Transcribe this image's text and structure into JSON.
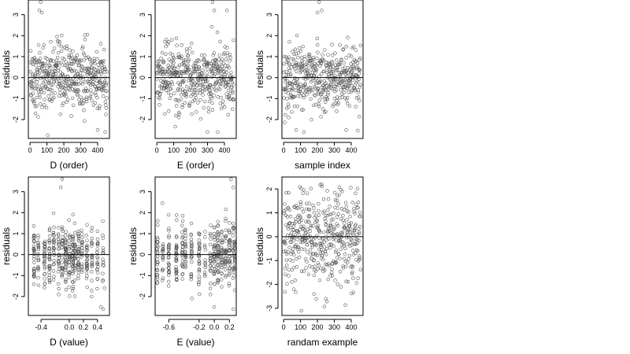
{
  "figure": {
    "colors": {
      "point": "#555555",
      "axis": "#000000",
      "background": "#ffffff"
    },
    "point_marker": "open-circle",
    "point_count_per_panel": 450
  },
  "chart_data": [
    {
      "type": "scatter",
      "panel": "D-order",
      "title": "",
      "xlabel": "D (order)",
      "ylabel": "residuals",
      "xlim": [
        -10,
        470
      ],
      "ylim": [
        -2.9,
        3.7
      ],
      "xticks": [
        0,
        100,
        200,
        300,
        400
      ],
      "xtick_labels": [
        "0",
        "100",
        "200",
        "300",
        "400"
      ],
      "yticks": [
        -2,
        -1,
        0,
        1,
        2,
        3
      ],
      "ytick_labels": [
        "-2",
        "-1",
        "0",
        "1",
        "2",
        "3"
      ],
      "hline": 0,
      "grid": false,
      "legend": "none",
      "x_pattern": "index",
      "y_spread": 0.75,
      "outliers": [
        [
          62,
          3.6
        ],
        [
          55,
          3.2
        ],
        [
          70,
          3.1
        ],
        [
          400,
          -2.5
        ],
        [
          445,
          -2.6
        ],
        [
          105,
          -2.75
        ],
        [
          180,
          -1.75
        ]
      ]
    },
    {
      "type": "scatter",
      "panel": "E-order",
      "title": "",
      "xlabel": "E (order)",
      "ylabel": "residuals",
      "xlim": [
        -10,
        470
      ],
      "ylim": [
        -2.9,
        3.7
      ],
      "xticks": [
        0,
        100,
        200,
        300,
        400
      ],
      "xtick_labels": [
        "0",
        "100",
        "200",
        "300",
        "400"
      ],
      "yticks": [
        -2,
        -1,
        0,
        1,
        2,
        3
      ],
      "ytick_labels": [
        "-2",
        "-1",
        "0",
        "1",
        "2",
        "3"
      ],
      "hline": 0,
      "grid": false,
      "legend": "none",
      "x_pattern": "index",
      "y_spread": 0.75,
      "outliers": [
        [
          330,
          3.6
        ],
        [
          340,
          3.2
        ],
        [
          415,
          3.2
        ],
        [
          130,
          -1.9
        ],
        [
          300,
          -2.6
        ],
        [
          360,
          -2.6
        ],
        [
          70,
          -1.6
        ]
      ]
    },
    {
      "type": "scatter",
      "panel": "sample-index",
      "title": "",
      "xlabel": "sample index",
      "ylabel": "residuals",
      "xlim": [
        -10,
        470
      ],
      "ylim": [
        -2.9,
        3.7
      ],
      "xticks": [
        0,
        100,
        200,
        300,
        400
      ],
      "xtick_labels": [
        "0",
        "100",
        "200",
        "300",
        "400"
      ],
      "yticks": [
        -2,
        -1,
        0,
        1,
        2,
        3
      ],
      "ytick_labels": [
        "-2",
        "-1",
        "0",
        "1",
        "2",
        "3"
      ],
      "hline": 0,
      "grid": false,
      "legend": "none",
      "x_pattern": "index",
      "y_spread": 0.75,
      "outliers": [
        [
          210,
          3.6
        ],
        [
          225,
          3.2
        ],
        [
          200,
          3.1
        ],
        [
          75,
          -2.5
        ],
        [
          120,
          -2.6
        ],
        [
          370,
          -2.5
        ],
        [
          30,
          -1.9
        ]
      ]
    },
    {
      "type": "scatter",
      "panel": "D-value",
      "title": "",
      "xlabel": "D (value)",
      "ylabel": "residuals",
      "xlim": [
        -0.58,
        0.57
      ],
      "ylim": [
        -2.9,
        3.7
      ],
      "xticks": [
        -0.4,
        0.0,
        0.2,
        0.4
      ],
      "xtick_labels": [
        "-0.4",
        "0.0",
        "0.2",
        "0.4"
      ],
      "yticks": [
        -2,
        -1,
        0,
        1,
        2,
        3
      ],
      "ytick_labels": [
        "-2",
        "-1",
        "0",
        "1",
        "2",
        "3"
      ],
      "hline": 0,
      "grid": false,
      "legend": "none",
      "x_pattern": "columns",
      "x_columns": [
        -0.5,
        -0.44,
        -0.35,
        -0.28,
        -0.22,
        -0.15,
        -0.1,
        -0.05,
        0.0,
        0.05,
        0.08,
        0.13,
        0.18,
        0.25,
        0.32,
        0.4,
        0.48
      ],
      "y_spread": 0.75,
      "outliers": [
        [
          -0.1,
          3.6
        ],
        [
          -0.12,
          3.2
        ],
        [
          0.45,
          -2.5
        ],
        [
          0.48,
          -2.6
        ],
        [
          -0.15,
          -1.9
        ],
        [
          0.5,
          -1.6
        ]
      ]
    },
    {
      "type": "scatter",
      "panel": "E-value",
      "title": "",
      "xlabel": "E (value)",
      "ylabel": "residuals",
      "xlim": [
        -0.78,
        0.29
      ],
      "ylim": [
        -2.9,
        3.7
      ],
      "xticks": [
        -0.6,
        -0.2,
        0.0,
        0.2
      ],
      "xtick_labels": [
        "-0.6",
        "-0.2",
        "0.0",
        "0.2"
      ],
      "yticks": [
        -2,
        -1,
        0,
        1,
        2,
        3
      ],
      "ytick_labels": [
        "-2",
        "-1",
        "0",
        "1",
        "2",
        "3"
      ],
      "hline": 0,
      "grid": false,
      "legend": "none",
      "x_pattern": "columns",
      "x_columns": [
        -0.75,
        -0.68,
        -0.6,
        -0.5,
        -0.42,
        -0.38,
        -0.3,
        -0.2,
        -0.12,
        -0.05,
        0.0,
        0.05,
        0.1,
        0.15,
        0.2,
        0.25,
        0.27
      ],
      "y_spread": 0.75,
      "outliers": [
        [
          0.22,
          3.6
        ],
        [
          0.25,
          3.2
        ],
        [
          0.0,
          -2.5
        ],
        [
          0.25,
          -2.6
        ],
        [
          -0.05,
          -1.9
        ],
        [
          0.27,
          -1.7
        ]
      ]
    },
    {
      "type": "scatter",
      "panel": "random-example",
      "title": "",
      "xlabel": "randam example",
      "ylabel": "residuals",
      "xlim": [
        -10,
        470
      ],
      "ylim": [
        -3.3,
        2.5
      ],
      "xticks": [
        0,
        100,
        200,
        300,
        400
      ],
      "xtick_labels": [
        "0",
        "100",
        "200",
        "300",
        "400"
      ],
      "yticks": [
        -3,
        -2,
        -1,
        0,
        1,
        2
      ],
      "ytick_labels": [
        "-3",
        "-2",
        "-1",
        "0",
        "1",
        "2"
      ],
      "hline": 0,
      "grid": false,
      "legend": "none",
      "x_pattern": "index",
      "y_spread": 1.0,
      "outliers": [
        [
          105,
          -3.1
        ],
        [
          250,
          -2.6
        ],
        [
          60,
          -2.2
        ],
        [
          180,
          -2.4
        ],
        [
          320,
          -2.0
        ]
      ]
    }
  ]
}
